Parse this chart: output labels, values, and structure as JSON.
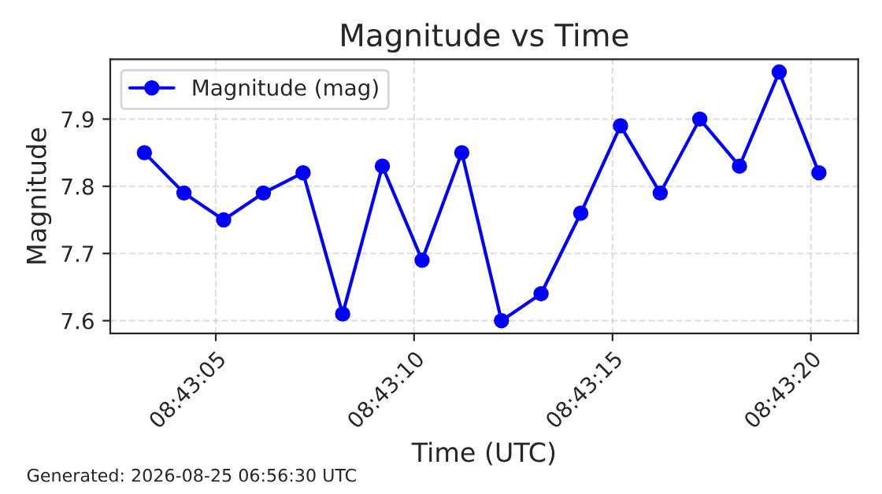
{
  "chart_data": {
    "type": "line",
    "title": "Magnitude vs Time",
    "xlabel": "Time (UTC)",
    "ylabel": "Magnitude",
    "x": [
      8.717556,
      8.717833,
      8.718111,
      8.718389,
      8.718667,
      8.718944,
      8.719222,
      8.7195,
      8.719778,
      8.720056,
      8.720333,
      8.720611,
      8.720889,
      8.721167,
      8.721444,
      8.721722,
      8.722,
      8.722278
    ],
    "series": [
      {
        "name": "Magnitude (mag)",
        "color": "#0000ff",
        "values": [
          7.85,
          7.79,
          7.75,
          7.79,
          7.82,
          7.61,
          7.83,
          7.69,
          7.85,
          7.6,
          7.64,
          7.76,
          7.89,
          7.79,
          7.9,
          7.83,
          7.97,
          7.82
        ]
      }
    ],
    "xlim": [
      8.717317,
      8.722553
    ],
    "xticks": [
      {
        "value": 8.718056,
        "label": "08:43:05"
      },
      {
        "value": 8.719444,
        "label": "08:43:10"
      },
      {
        "value": 8.720833,
        "label": "08:43:15"
      },
      {
        "value": 8.722222,
        "label": "08:43:20"
      }
    ],
    "ylim": [
      7.581,
      7.989
    ],
    "yticks": [
      7.6,
      7.7,
      7.8,
      7.9
    ],
    "grid": true,
    "legend": "top left",
    "marker": "circle",
    "line_style": "solid",
    "annotations": [
      "Generated: 2026-08-25 06:56:30 UTC"
    ]
  }
}
